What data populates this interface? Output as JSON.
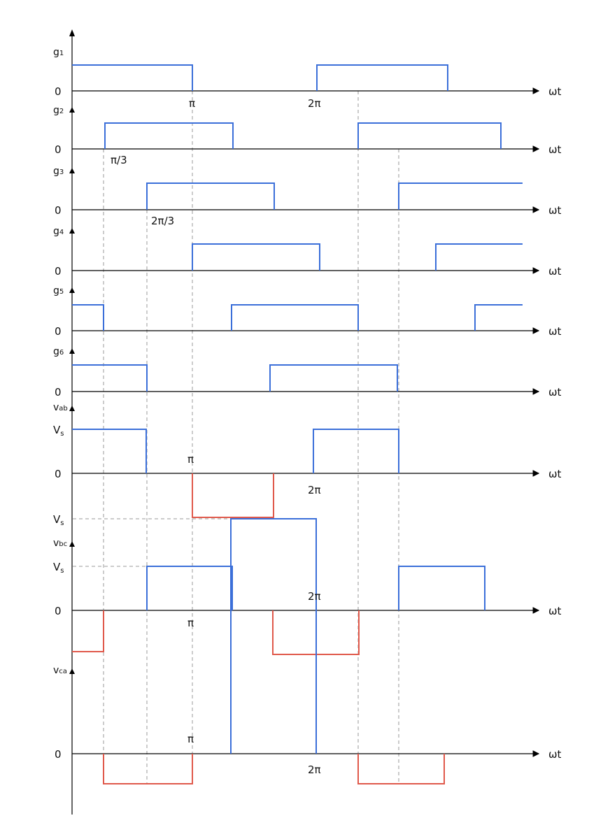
{
  "axis_label": "ωt",
  "zero_label": "0",
  "vs_label": "V",
  "vs_sub": "s",
  "tick_labels": {
    "pi": "π",
    "two_pi": "2π",
    "pi_over_3": "π/3",
    "two_pi_over_3": "2π/3"
  },
  "channels": [
    {
      "base": "g",
      "sub": "1",
      "kind": "gate"
    },
    {
      "base": "g",
      "sub": "2",
      "kind": "gate"
    },
    {
      "base": "g",
      "sub": "3",
      "kind": "gate"
    },
    {
      "base": "g",
      "sub": "4",
      "kind": "gate"
    },
    {
      "base": "g",
      "sub": "5",
      "kind": "gate"
    },
    {
      "base": "g",
      "sub": "6",
      "kind": "gate"
    },
    {
      "base": "v",
      "sub": "ab",
      "kind": "voltage"
    },
    {
      "base": "v",
      "sub": "bc",
      "kind": "voltage"
    },
    {
      "base": "v",
      "sub": "ca",
      "kind": "voltage"
    }
  ],
  "colors": {
    "positive": "#3b6fd9",
    "negative": "#e0594b",
    "axis": "#000000",
    "guide": "#9a9a9a"
  }
}
